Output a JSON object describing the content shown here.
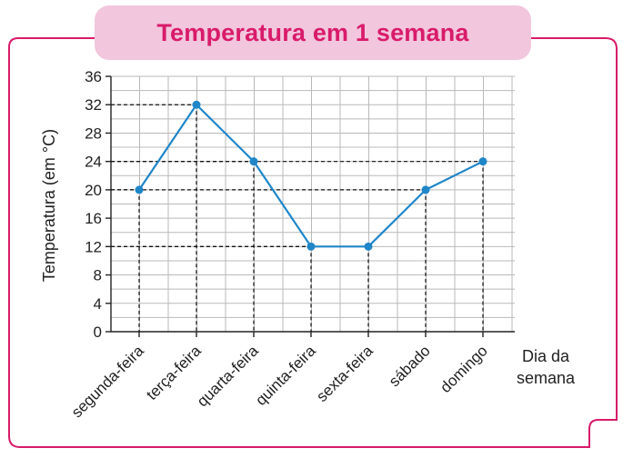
{
  "chart_data": {
    "type": "line",
    "title": "Temperatura em 1 semana",
    "xlabel_line1": "Dia da",
    "xlabel_line2": "semana",
    "ylabel": "Temperatura (em °C)",
    "categories": [
      "segunda-feira",
      "terça-feira",
      "quarta-feira",
      "quinta-feira",
      "sexta-feira",
      "sábado",
      "domingo"
    ],
    "values": [
      20,
      32,
      24,
      12,
      12,
      20,
      24
    ],
    "ylim": [
      0,
      36
    ],
    "yticks": [
      0,
      4,
      8,
      12,
      16,
      20,
      24,
      28,
      32,
      36
    ],
    "ytick_labels": [
      "0",
      "4",
      "8",
      "12",
      "16",
      "20",
      "24",
      "28",
      "32",
      "36"
    ],
    "grid": true,
    "guide_lines": "dashed",
    "line_color": "#1f86c8",
    "frame_color": "#d81b6a",
    "title_bg_color": "#f2c6dd"
  }
}
